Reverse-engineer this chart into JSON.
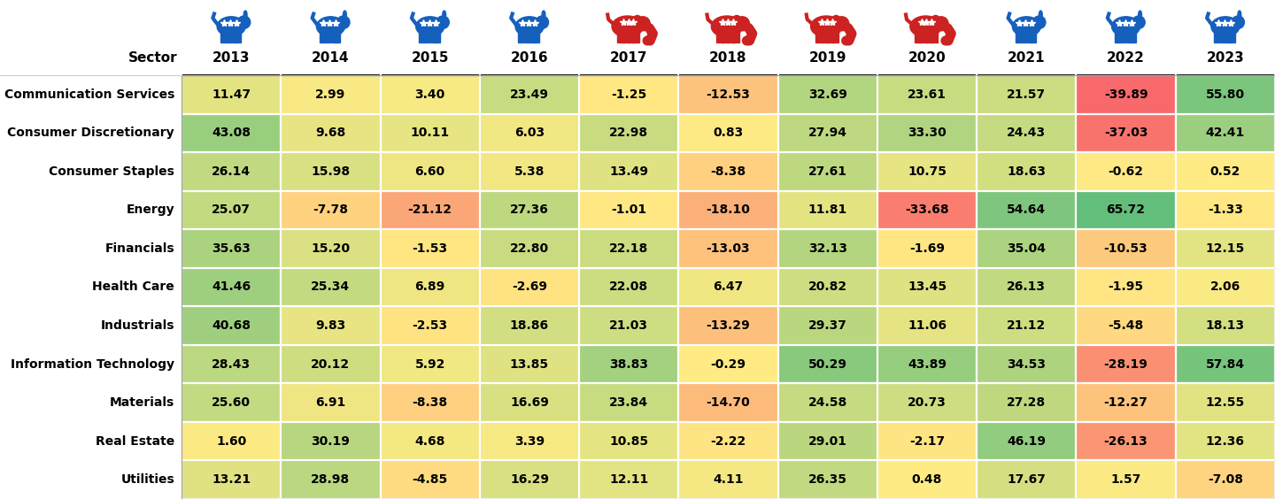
{
  "years": [
    "2013",
    "2014",
    "2015",
    "2016",
    "2017",
    "2018",
    "2019",
    "2020",
    "2021",
    "2022",
    "2023"
  ],
  "party": [
    "D",
    "D",
    "D",
    "D",
    "R",
    "R",
    "R",
    "R",
    "D",
    "D",
    "D"
  ],
  "sectors": [
    "Communication Services",
    "Consumer Discretionary",
    "Consumer Staples",
    "Energy",
    "Financials",
    "Health Care",
    "Industrials",
    "Information Technology",
    "Materials",
    "Real Estate",
    "Utilities"
  ],
  "values": [
    [
      11.47,
      2.99,
      3.4,
      23.49,
      -1.25,
      -12.53,
      32.69,
      23.61,
      21.57,
      -39.89,
      55.8
    ],
    [
      43.08,
      9.68,
      10.11,
      6.03,
      22.98,
      0.83,
      27.94,
      33.3,
      24.43,
      -37.03,
      42.41
    ],
    [
      26.14,
      15.98,
      6.6,
      5.38,
      13.49,
      -8.38,
      27.61,
      10.75,
      18.63,
      -0.62,
      0.52
    ],
    [
      25.07,
      -7.78,
      -21.12,
      27.36,
      -1.01,
      -18.1,
      11.81,
      -33.68,
      54.64,
      65.72,
      -1.33
    ],
    [
      35.63,
      15.2,
      -1.53,
      22.8,
      22.18,
      -13.03,
      32.13,
      -1.69,
      35.04,
      -10.53,
      12.15
    ],
    [
      41.46,
      25.34,
      6.89,
      -2.69,
      22.08,
      6.47,
      20.82,
      13.45,
      26.13,
      -1.95,
      2.06
    ],
    [
      40.68,
      9.83,
      -2.53,
      18.86,
      21.03,
      -13.29,
      29.37,
      11.06,
      21.12,
      -5.48,
      18.13
    ],
    [
      28.43,
      20.12,
      5.92,
      13.85,
      38.83,
      -0.29,
      50.29,
      43.89,
      34.53,
      -28.19,
      57.84
    ],
    [
      25.6,
      6.91,
      -8.38,
      16.69,
      23.84,
      -14.7,
      24.58,
      20.73,
      27.28,
      -12.27,
      12.55
    ],
    [
      1.6,
      30.19,
      4.68,
      3.39,
      10.85,
      -2.22,
      29.01,
      -2.17,
      46.19,
      -26.13,
      12.36
    ],
    [
      13.21,
      28.98,
      -4.85,
      16.29,
      12.11,
      4.11,
      26.35,
      0.48,
      17.67,
      1.57,
      -7.08
    ]
  ],
  "dem_color": "#1560bd",
  "rep_color": "#cc2222",
  "header_bg": "#ffffff",
  "row_label_color": "#000000",
  "col_header_color": "#000000"
}
